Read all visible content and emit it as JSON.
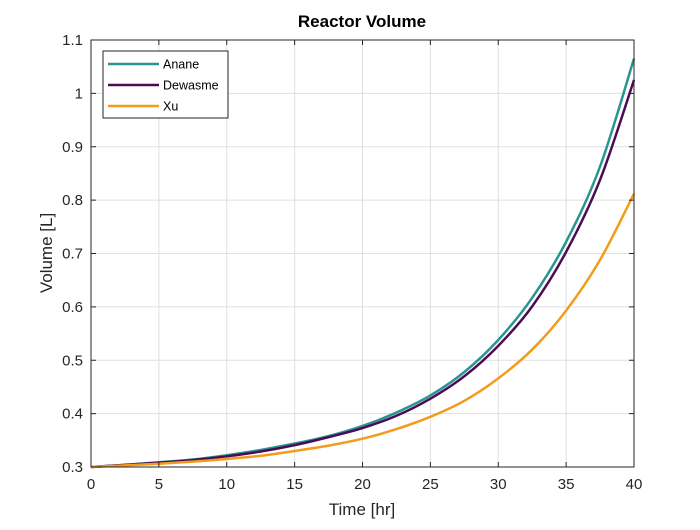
{
  "chart_data": {
    "type": "line",
    "title": "Reactor Volume",
    "xlabel": "Time [hr]",
    "ylabel": "Volume [L]",
    "xlim": [
      0,
      40
    ],
    "ylim": [
      0.3,
      1.1
    ],
    "x_ticks": [
      "0",
      "5",
      "10",
      "15",
      "20",
      "25",
      "30",
      "35",
      "40"
    ],
    "y_ticks": [
      "0.3",
      "0.4",
      "0.5",
      "0.6",
      "0.7",
      "0.8",
      "0.9",
      "1",
      "1.1"
    ],
    "grid": true,
    "legend_position": "top-left",
    "x": [
      0,
      2.5,
      5,
      7.5,
      10,
      12.5,
      15,
      17.5,
      20,
      22.5,
      25,
      27.5,
      30,
      32.5,
      35,
      37.5,
      40
    ],
    "series": [
      {
        "name": "Anane",
        "color": "#2a9590",
        "values": [
          0.3,
          0.304,
          0.309,
          0.314,
          0.322,
          0.332,
          0.344,
          0.358,
          0.377,
          0.402,
          0.434,
          0.478,
          0.538,
          0.617,
          0.722,
          0.863,
          1.065
        ]
      },
      {
        "name": "Dewasme",
        "color": "#4b0c55",
        "values": [
          0.3,
          0.304,
          0.308,
          0.313,
          0.32,
          0.329,
          0.341,
          0.356,
          0.373,
          0.396,
          0.428,
          0.47,
          0.527,
          0.601,
          0.703,
          0.838,
          1.025
        ]
      },
      {
        "name": "Xu",
        "color": "#f39c1b",
        "values": [
          0.3,
          0.303,
          0.306,
          0.31,
          0.315,
          0.321,
          0.33,
          0.34,
          0.353,
          0.371,
          0.394,
          0.424,
          0.466,
          0.52,
          0.593,
          0.688,
          0.812
        ]
      }
    ]
  }
}
